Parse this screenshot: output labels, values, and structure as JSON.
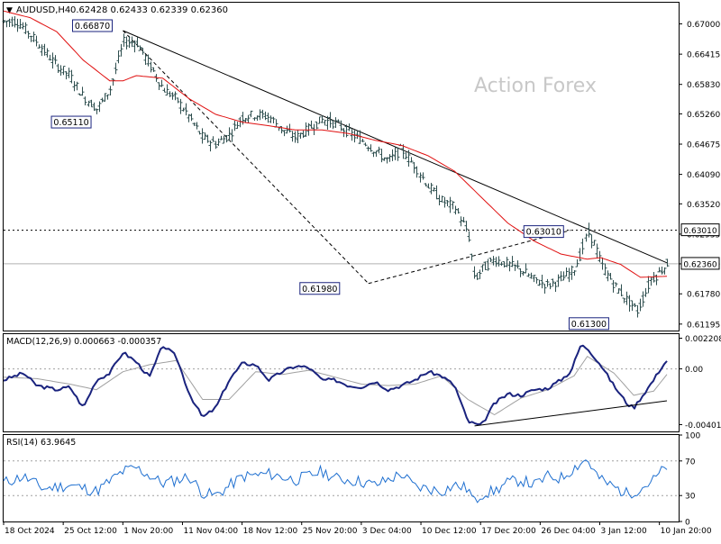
{
  "header": {
    "title": "AUDUSD,H4",
    "ohlc": "0.62428 0.62433 0.62339 0.62360"
  },
  "watermark": "Action Forex",
  "colors": {
    "candle": "#2f4f4f",
    "ma": "#e01010",
    "macd": "#1a237e",
    "signal": "#a0a0a0",
    "rsi": "#1e6fd0",
    "label_border": "#1a237e",
    "trendline": "#000000"
  },
  "chart_data": [
    {
      "type": "candlestick",
      "panel": "price",
      "title": "AUDUSD,H4",
      "y_ticks": [
        "0.67000",
        "0.66415",
        "0.65830",
        "0.65260",
        "0.64675",
        "0.64090",
        "0.63520",
        "0.62935",
        "0.62360",
        "0.61780",
        "0.61195"
      ],
      "ylim": [
        0.6107,
        0.6741
      ],
      "current_price": "0.62360",
      "level_line": "0.63010",
      "annotations": [
        {
          "label": "0.66870",
          "x": 0.18,
          "y": 0.6687
        },
        {
          "label": "0.65110",
          "x": 0.14,
          "y": 0.6511
        },
        {
          "label": "0.61980",
          "x": 0.55,
          "y": 0.6198
        },
        {
          "label": "0.63010",
          "x": 0.855,
          "y": 0.6301
        },
        {
          "label": "0.61300",
          "x": 0.915,
          "y": 0.613
        }
      ],
      "close_path": [
        [
          0.0,
          0.6705
        ],
        [
          0.02,
          0.6705
        ],
        [
          0.04,
          0.668
        ],
        [
          0.06,
          0.665
        ],
        [
          0.08,
          0.662
        ],
        [
          0.1,
          0.66
        ],
        [
          0.12,
          0.656
        ],
        [
          0.14,
          0.6535
        ],
        [
          0.16,
          0.6575
        ],
        [
          0.18,
          0.6665
        ],
        [
          0.2,
          0.6665
        ],
        [
          0.22,
          0.662
        ],
        [
          0.24,
          0.6575
        ],
        [
          0.26,
          0.6555
        ],
        [
          0.28,
          0.652
        ],
        [
          0.3,
          0.648
        ],
        [
          0.32,
          0.6468
        ],
        [
          0.34,
          0.6485
        ],
        [
          0.36,
          0.652
        ],
        [
          0.38,
          0.6525
        ],
        [
          0.4,
          0.652
        ],
        [
          0.42,
          0.6495
        ],
        [
          0.44,
          0.648
        ],
        [
          0.46,
          0.6498
        ],
        [
          0.48,
          0.6515
        ],
        [
          0.5,
          0.6508
        ],
        [
          0.52,
          0.649
        ],
        [
          0.54,
          0.6475
        ],
        [
          0.56,
          0.6455
        ],
        [
          0.58,
          0.6435
        ],
        [
          0.6,
          0.6458
        ],
        [
          0.62,
          0.6425
        ],
        [
          0.64,
          0.6385
        ],
        [
          0.66,
          0.6358
        ],
        [
          0.68,
          0.6345
        ],
        [
          0.7,
          0.6295
        ],
        [
          0.71,
          0.6205
        ],
        [
          0.72,
          0.6225
        ],
        [
          0.74,
          0.6245
        ],
        [
          0.76,
          0.6235
        ],
        [
          0.78,
          0.6225
        ],
        [
          0.8,
          0.6205
        ],
        [
          0.82,
          0.6195
        ],
        [
          0.84,
          0.6205
        ],
        [
          0.86,
          0.6225
        ],
        [
          0.87,
          0.6255
        ],
        [
          0.88,
          0.6298
        ],
        [
          0.89,
          0.6275
        ],
        [
          0.9,
          0.6235
        ],
        [
          0.92,
          0.6195
        ],
        [
          0.94,
          0.6165
        ],
        [
          0.955,
          0.6145
        ],
        [
          0.965,
          0.6175
        ],
        [
          0.975,
          0.6205
        ],
        [
          0.985,
          0.6215
        ],
        [
          1.0,
          0.6236
        ]
      ],
      "ma_path": [
        [
          0.0,
          0.6725
        ],
        [
          0.04,
          0.6712
        ],
        [
          0.08,
          0.6685
        ],
        [
          0.12,
          0.663
        ],
        [
          0.16,
          0.659
        ],
        [
          0.18,
          0.659
        ],
        [
          0.2,
          0.66
        ],
        [
          0.24,
          0.6595
        ],
        [
          0.28,
          0.6555
        ],
        [
          0.32,
          0.6525
        ],
        [
          0.36,
          0.651
        ],
        [
          0.4,
          0.6503
        ],
        [
          0.44,
          0.6495
        ],
        [
          0.48,
          0.6495
        ],
        [
          0.52,
          0.6488
        ],
        [
          0.56,
          0.6475
        ],
        [
          0.6,
          0.6465
        ],
        [
          0.64,
          0.6445
        ],
        [
          0.68,
          0.6415
        ],
        [
          0.72,
          0.6365
        ],
        [
          0.76,
          0.6315
        ],
        [
          0.8,
          0.628
        ],
        [
          0.84,
          0.6255
        ],
        [
          0.88,
          0.6245
        ],
        [
          0.9,
          0.6248
        ],
        [
          0.93,
          0.6235
        ],
        [
          0.96,
          0.621
        ],
        [
          1.0,
          0.6212
        ]
      ],
      "trendlines": [
        {
          "from": [
            0.18,
            0.6687
          ],
          "to": [
            1.0,
            0.6238
          ],
          "style": "solid"
        },
        {
          "from": [
            0.18,
            0.6687
          ],
          "to": [
            0.55,
            0.6198
          ],
          "style": "dashed"
        },
        {
          "from": [
            0.55,
            0.6198
          ],
          "to": [
            0.855,
            0.6301
          ],
          "style": "dashed"
        }
      ]
    },
    {
      "type": "line",
      "panel": "macd",
      "title": "MACD(12,26,9) 0.000663 -0.000357",
      "y_ticks": [
        "0.002208",
        "0.00",
        "-0.004012"
      ],
      "ylim": [
        -0.0045,
        0.0025
      ],
      "series": [
        {
          "name": "MACD",
          "points": [
            [
              0.0,
              -0.0008
            ],
            [
              0.03,
              -0.0003
            ],
            [
              0.05,
              -0.0012
            ],
            [
              0.08,
              -0.0015
            ],
            [
              0.1,
              -0.0013
            ],
            [
              0.12,
              -0.0028
            ],
            [
              0.14,
              -0.0008
            ],
            [
              0.16,
              -0.0003
            ],
            [
              0.18,
              0.0012
            ],
            [
              0.2,
              0.0005
            ],
            [
              0.22,
              -0.0006
            ],
            [
              0.24,
              0.0017
            ],
            [
              0.26,
              0.0009
            ],
            [
              0.28,
              -0.0018
            ],
            [
              0.3,
              -0.0035
            ],
            [
              0.32,
              -0.0028
            ],
            [
              0.34,
              -0.0008
            ],
            [
              0.36,
              0.0004
            ],
            [
              0.38,
              0.0003
            ],
            [
              0.4,
              -0.0008
            ],
            [
              0.42,
              -0.0002
            ],
            [
              0.44,
              0.0002
            ],
            [
              0.46,
              0.0001
            ],
            [
              0.48,
              -0.0008
            ],
            [
              0.5,
              -0.0008
            ],
            [
              0.52,
              -0.0012
            ],
            [
              0.54,
              -0.0013
            ],
            [
              0.56,
              -0.0009
            ],
            [
              0.58,
              -0.0015
            ],
            [
              0.6,
              -0.0012
            ],
            [
              0.62,
              -0.0008
            ],
            [
              0.64,
              -0.0002
            ],
            [
              0.66,
              -0.0005
            ],
            [
              0.68,
              -0.0012
            ],
            [
              0.7,
              -0.0038
            ],
            [
              0.72,
              -0.0041
            ],
            [
              0.74,
              -0.0025
            ],
            [
              0.76,
              -0.0018
            ],
            [
              0.78,
              -0.0019
            ],
            [
              0.8,
              -0.0015
            ],
            [
              0.82,
              -0.0014
            ],
            [
              0.84,
              -0.0008
            ],
            [
              0.855,
              -0.0002
            ],
            [
              0.87,
              0.0017
            ],
            [
              0.88,
              0.0015
            ],
            [
              0.9,
              0.0003
            ],
            [
              0.92,
              -0.0012
            ],
            [
              0.94,
              -0.0025
            ],
            [
              0.95,
              -0.0028
            ],
            [
              0.965,
              -0.0018
            ],
            [
              0.98,
              -0.0008
            ],
            [
              0.99,
              0.0
            ],
            [
              1.0,
              0.0006
            ]
          ]
        },
        {
          "name": "Signal",
          "points": [
            [
              0.0,
              -0.0006
            ],
            [
              0.05,
              -0.0007
            ],
            [
              0.1,
              -0.0011
            ],
            [
              0.14,
              -0.0015
            ],
            [
              0.18,
              -0.0002
            ],
            [
              0.22,
              0.0003
            ],
            [
              0.26,
              0.0006
            ],
            [
              0.3,
              -0.0022
            ],
            [
              0.34,
              -0.0022
            ],
            [
              0.38,
              -0.0002
            ],
            [
              0.42,
              -0.0004
            ],
            [
              0.46,
              -0.0001
            ],
            [
              0.5,
              -0.0006
            ],
            [
              0.54,
              -0.0011
            ],
            [
              0.58,
              -0.0012
            ],
            [
              0.62,
              -0.0011
            ],
            [
              0.66,
              -0.0005
            ],
            [
              0.7,
              -0.0022
            ],
            [
              0.74,
              -0.0033
            ],
            [
              0.78,
              -0.0021
            ],
            [
              0.82,
              -0.0015
            ],
            [
              0.86,
              -0.0005
            ],
            [
              0.88,
              0.0009
            ],
            [
              0.92,
              -0.0003
            ],
            [
              0.95,
              -0.0019
            ],
            [
              0.98,
              -0.0016
            ],
            [
              1.0,
              -0.0004
            ]
          ]
        }
      ],
      "trendlines": [
        {
          "from": [
            0.71,
            -0.0041
          ],
          "to": [
            1.0,
            -0.0023
          ],
          "style": "solid"
        }
      ]
    },
    {
      "type": "line",
      "panel": "rsi",
      "title": "RSI(14) 63.9645",
      "y_ticks": [
        "100",
        "70",
        "30",
        "0"
      ],
      "ylim": [
        0,
        100
      ],
      "levels": [
        70,
        30
      ],
      "series": [
        {
          "name": "RSI",
          "points": [
            [
              0.0,
              45
            ],
            [
              0.03,
              52
            ],
            [
              0.06,
              38
            ],
            [
              0.1,
              42
            ],
            [
              0.14,
              35
            ],
            [
              0.18,
              58
            ],
            [
              0.2,
              62
            ],
            [
              0.24,
              44
            ],
            [
              0.28,
              52
            ],
            [
              0.3,
              33
            ],
            [
              0.32,
              30
            ],
            [
              0.36,
              52
            ],
            [
              0.4,
              55
            ],
            [
              0.44,
              48
            ],
            [
              0.48,
              58
            ],
            [
              0.5,
              50
            ],
            [
              0.54,
              46
            ],
            [
              0.56,
              42
            ],
            [
              0.6,
              55
            ],
            [
              0.62,
              40
            ],
            [
              0.64,
              38
            ],
            [
              0.66,
              35
            ],
            [
              0.68,
              42
            ],
            [
              0.7,
              38
            ],
            [
              0.71,
              22
            ],
            [
              0.72,
              32
            ],
            [
              0.74,
              35
            ],
            [
              0.76,
              45
            ],
            [
              0.78,
              48
            ],
            [
              0.8,
              42
            ],
            [
              0.82,
              52
            ],
            [
              0.84,
              50
            ],
            [
              0.86,
              62
            ],
            [
              0.87,
              68
            ],
            [
              0.88,
              72
            ],
            [
              0.89,
              58
            ],
            [
              0.9,
              48
            ],
            [
              0.92,
              40
            ],
            [
              0.94,
              32
            ],
            [
              0.96,
              38
            ],
            [
              0.98,
              48
            ],
            [
              1.0,
              64
            ]
          ]
        }
      ]
    }
  ],
  "x_axis": {
    "labels": [
      "18 Oct 2024",
      "25 Oct 12:00",
      "1 Nov 20:00",
      "11 Nov 04:00",
      "18 Nov 12:00",
      "25 Nov 20:00",
      "3 Dec 04:00",
      "10 Dec 12:00",
      "17 Dec 20:00",
      "26 Dec 04:00",
      "3 Jan 12:00",
      "10 Jan 20:00"
    ]
  }
}
